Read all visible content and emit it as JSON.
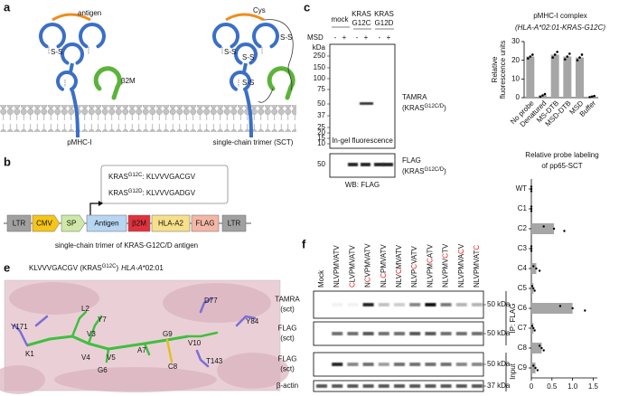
{
  "panel_a": {
    "letter": "a",
    "antigen": "antigen",
    "b2m": "β2M",
    "disulfide": "S-S",
    "cys": "Cys",
    "labels": [
      "pMHC-I",
      "single-chain trimer (SCT)"
    ]
  },
  "panel_b": {
    "letter": "b",
    "sequences": [
      {
        "gene": "KRAS",
        "sup": "G12C",
        "seq": ": KLVVVGACGV"
      },
      {
        "gene": "KRAS",
        "sup": "G12D",
        "seq": ": KLVVVGADGV"
      }
    ],
    "elements": [
      {
        "label": "LTR",
        "color": "#a0a0a0"
      },
      {
        "label": "CMV",
        "color": "#f5c518"
      },
      {
        "label": "SP",
        "color": "#cfe8a8"
      },
      {
        "label": "Antigen",
        "color": "#b7d6f2"
      },
      {
        "label": "β2M",
        "color": "#e0323c"
      },
      {
        "label": "HLA-A2",
        "color": "#f7e08a"
      },
      {
        "label": "FLAG",
        "color": "#f4b6a6"
      },
      {
        "label": "LTR",
        "color": "#a0a0a0"
      }
    ],
    "caption": "single-chain trimer of KRAS-G12C/D antigen"
  },
  "panel_c": {
    "letter": "c",
    "lanes": [
      [
        "mock"
      ],
      [
        "KRAS",
        "G12C"
      ],
      [
        "KRAS",
        "G12D"
      ]
    ],
    "treatment": "MSD",
    "signs": [
      "-",
      "+",
      "-",
      "+",
      "-",
      "+"
    ],
    "kda": "kDa",
    "markers": [
      250,
      150,
      100,
      75,
      50,
      37,
      25,
      20,
      15,
      10
    ],
    "gel_label": "In-gel fluorescence",
    "tamra": {
      "name": "TAMRA",
      "gene": "(KRAS",
      "sup": "G12C/D",
      "close": ")"
    },
    "flag_marker": 50,
    "flag": {
      "name": "FLAG",
      "gene": "(KRAS",
      "sup": "G12C/D",
      "close": ")"
    },
    "blot": "WB: FLAG"
  },
  "panel_e": {
    "letter": "e",
    "title": {
      "seq": "KLVVVGACGV (KRAS",
      "sup": "G12C",
      "close": ")",
      "hla": "HLA-A",
      "allele": "*02:01"
    },
    "residues": [
      "Y171",
      "K1",
      "L2",
      "Y7",
      "V3",
      "V4",
      "V5",
      "G6",
      "A7",
      "C8",
      "G9",
      "V10",
      "D77",
      "Y84",
      "T143"
    ]
  },
  "panel_f": {
    "letter": "f",
    "lanes": [
      [
        {
          "text": "Mock"
        }
      ],
      [
        {
          "text": "NLVPMVATV"
        }
      ],
      [
        {
          "text": "C",
          "color": "#e02020"
        },
        {
          "text": "LVPMVATV"
        }
      ],
      [
        {
          "text": "N"
        },
        {
          "text": "C",
          "color": "#e02020"
        },
        {
          "text": "VPMVATV"
        }
      ],
      [
        {
          "text": "NL"
        },
        {
          "text": "C",
          "color": "#e02020"
        },
        {
          "text": "PMVATV"
        }
      ],
      [
        {
          "text": "NLV"
        },
        {
          "text": "C",
          "color": "#e02020"
        },
        {
          "text": "MVATV"
        }
      ],
      [
        {
          "text": "NLVP"
        },
        {
          "text": "C",
          "color": "#e02020"
        },
        {
          "text": "VATV"
        }
      ],
      [
        {
          "text": "NLVPM"
        },
        {
          "text": "C",
          "color": "#e02020"
        },
        {
          "text": "ATV"
        }
      ],
      [
        {
          "text": "NLVPMV"
        },
        {
          "text": "C",
          "color": "#e02020"
        },
        {
          "text": "TV"
        }
      ],
      [
        {
          "text": "NLVPMVA"
        },
        {
          "text": "C",
          "color": "#e02020"
        },
        {
          "text": "V"
        }
      ],
      [
        {
          "text": "NLVPMVAT"
        },
        {
          "text": "C",
          "color": "#e02020"
        }
      ]
    ],
    "rows": [
      [
        "TAMRA",
        "(sct)"
      ],
      [
        "FLAG",
        "(sct)"
      ],
      [
        "FLAG",
        "(sct)"
      ],
      [
        "β-actin"
      ]
    ],
    "sizes": [
      "50 kDa",
      "50 kDa",
      "50 kDa",
      "37 kDa"
    ],
    "groups": [
      "IP: FLAG",
      "Input"
    ]
  },
  "chart_data": [
    {
      "type": "bar",
      "title": "pMHC-I complex",
      "subtitle": "(HLA-A*02:01-KRAS-G12C)",
      "ylabel": [
        "Relative",
        "fluorescence units"
      ],
      "categories": [
        "No probe",
        "Denatured",
        "MS-DTB",
        "MSD-DTB",
        "MSD",
        "Buffer"
      ],
      "values": [
        22,
        1.2,
        23,
        22,
        21.5,
        0.6
      ],
      "replicates": [
        [
          21,
          22,
          23
        ],
        [
          0.5,
          1.2,
          1.9
        ],
        [
          21.5,
          23,
          24.5
        ],
        [
          20.5,
          22,
          23.5
        ],
        [
          20,
          21.5,
          23
        ],
        [
          0.3,
          0.6,
          0.9
        ]
      ],
      "color": "#a6a6a6",
      "ylim": [
        0,
        30
      ],
      "yticks": [
        0,
        10,
        20,
        30
      ]
    },
    {
      "type": "hbar",
      "title": [
        "Relative probe labeling",
        "of pp65-SCT"
      ],
      "categories": [
        "WT",
        "C1",
        "C2",
        "C3",
        "C4",
        "C5",
        "C6",
        "C7",
        "C8",
        "C9"
      ],
      "values": [
        0,
        0,
        0.55,
        0,
        0.12,
        0.05,
        1,
        0.05,
        0.25,
        0.1
      ],
      "replicates": [
        [
          0,
          0,
          0
        ],
        [
          0,
          0,
          0
        ],
        [
          0.3,
          0.55,
          0.8
        ],
        [
          0,
          0,
          0
        ],
        [
          0.05,
          0.12,
          0.2
        ],
        [
          0.02,
          0.05,
          0.08
        ],
        [
          0.7,
          1,
          1.3
        ],
        [
          0.02,
          0.05,
          0.08
        ],
        [
          0.2,
          0.25,
          0.3
        ],
        [
          0.05,
          0.1,
          0.15
        ]
      ],
      "color": "#a6a6a6",
      "xlim": [
        0,
        1.6
      ],
      "xticks": [
        0,
        0.5,
        {
          "value": 1,
          "label": "1.0"
        },
        1.5
      ]
    }
  ]
}
